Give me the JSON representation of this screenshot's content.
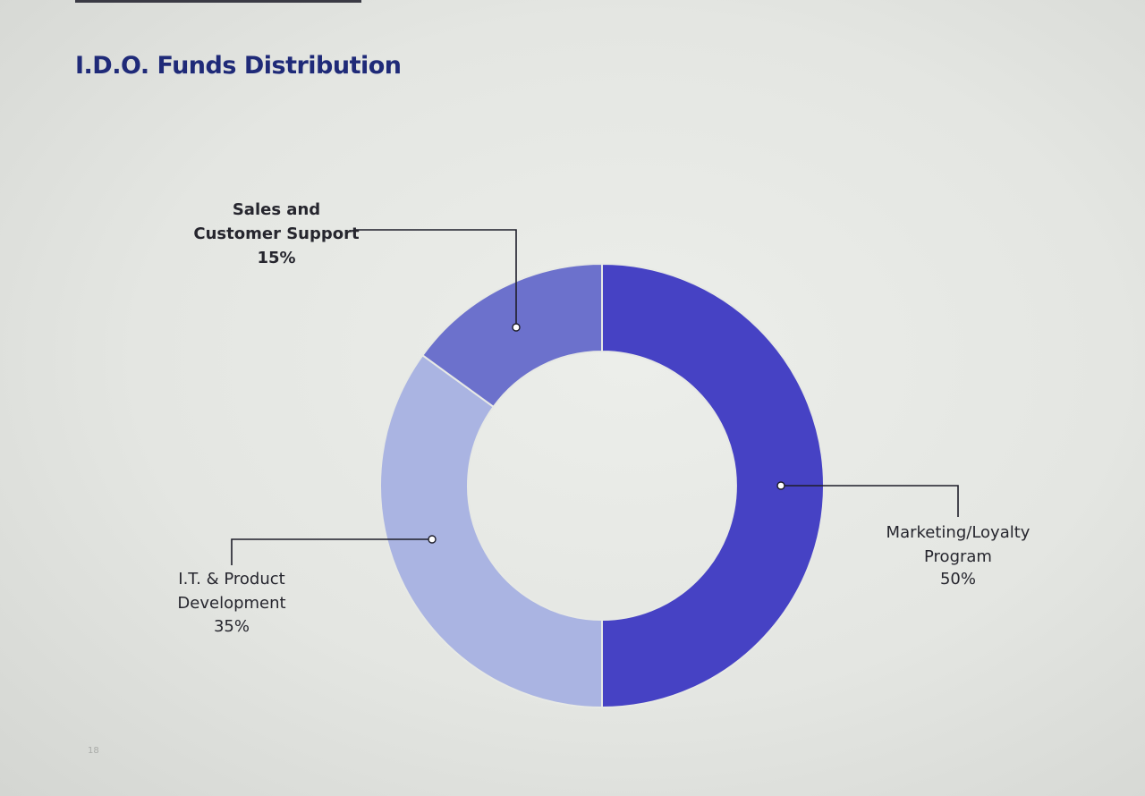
{
  "page": {
    "title": "I.D.O. Funds Distribution",
    "page_number": "18"
  },
  "chart_data": {
    "type": "pie",
    "donut": true,
    "title": "I.D.O. Funds Distribution",
    "slices": [
      {
        "name": "Marketing/Loyalty Program",
        "label_lines": [
          "Marketing/Loyalty",
          "Program",
          "50%"
        ],
        "value": 50,
        "color": "#4642c4"
      },
      {
        "name": "I.T. & Product Development",
        "label_lines": [
          "I.T. & Product",
          "Development",
          "35%"
        ],
        "value": 35,
        "color": "#aab4e2"
      },
      {
        "name": "Sales and Customer Support",
        "label_lines": [
          "Sales and",
          "Customer Support",
          "15%"
        ],
        "value": 15,
        "color": "#6c71cc"
      }
    ]
  }
}
